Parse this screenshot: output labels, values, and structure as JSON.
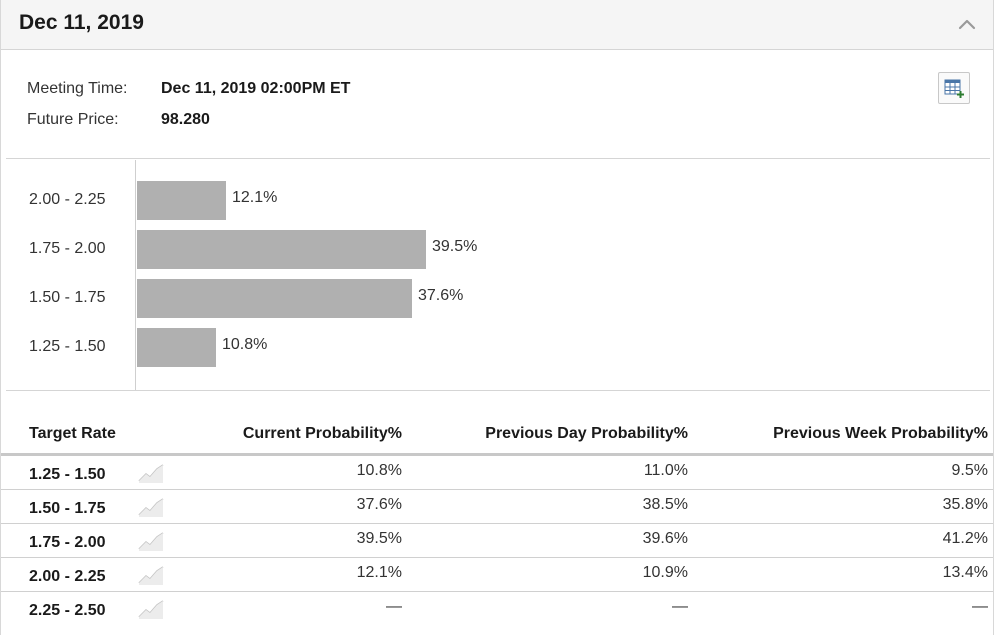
{
  "header": {
    "title": "Dec 11, 2019"
  },
  "meeting": {
    "time_label": "Meeting Time:",
    "time_value": "Dec 11, 2019 02:00PM ET",
    "price_label": "Future Price:",
    "price_value": "98.280"
  },
  "chart_data": {
    "type": "bar",
    "orientation": "horizontal",
    "categories": [
      "2.00 - 2.25",
      "1.75 - 2.00",
      "1.50 - 1.75",
      "1.25 - 1.50"
    ],
    "values": [
      12.1,
      39.5,
      37.6,
      10.8
    ],
    "labels": [
      "12.1%",
      "39.5%",
      "37.6%",
      "10.8%"
    ],
    "bar_color": "#b0b0b0"
  },
  "table": {
    "headers": [
      "Target Rate",
      "Current Probability%",
      "Previous Day Probability%",
      "Previous Week Probability%"
    ],
    "rows": [
      {
        "rate": "1.25 - 1.50",
        "current": "10.8%",
        "prev_day": "11.0%",
        "prev_week": "9.5%"
      },
      {
        "rate": "1.50 - 1.75",
        "current": "37.6%",
        "prev_day": "38.5%",
        "prev_week": "35.8%"
      },
      {
        "rate": "1.75 - 2.00",
        "current": "39.5%",
        "prev_day": "39.6%",
        "prev_week": "41.2%"
      },
      {
        "rate": "2.00 - 2.25",
        "current": "12.1%",
        "prev_day": "10.9%",
        "prev_week": "13.4%"
      },
      {
        "rate": "2.25 - 2.50",
        "current": "—",
        "prev_day": "—",
        "prev_week": "—"
      }
    ]
  },
  "icons": {
    "collapse": "chevron-up-icon",
    "export": "table-export-icon",
    "trend": "trend-chart-icon"
  }
}
